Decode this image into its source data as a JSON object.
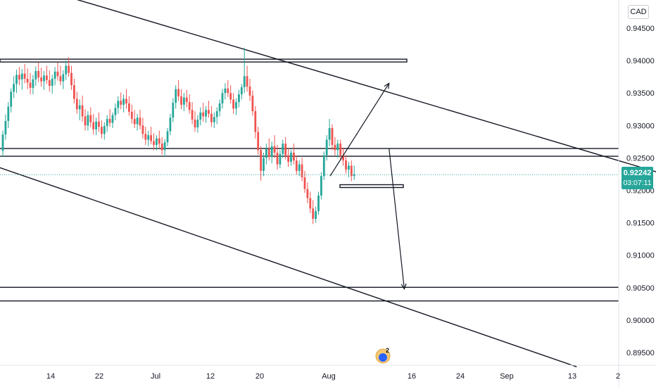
{
  "chart_data": {
    "type": "candlestick",
    "currency": "CAD",
    "ylim": [
      0.8925,
      0.9475
    ],
    "y_ticks": [
      "0.94500",
      "0.94000",
      "0.93500",
      "0.93000",
      "0.92500",
      "0.92000",
      "0.91500",
      "0.91000",
      "0.90500",
      "0.90000",
      "0.89500"
    ],
    "x_ticks": [
      "14",
      "22",
      "Jul",
      "12",
      "20",
      "Aug",
      "16",
      "24",
      "Sep",
      "13",
      "2"
    ],
    "last_price": "0.92242",
    "countdown": "03:07:11",
    "up_color": "#26a69a",
    "down_color": "#ef5350",
    "price_line_color": "#26a69a",
    "marker_count": "2",
    "horizontal_levels": [
      0.94,
      0.92645,
      0.92525,
      0.92065,
      0.90505,
      0.90295
    ],
    "candles_ohlc": [
      [
        0.9261,
        0.9292,
        0.9252,
        0.9286
      ],
      [
        0.9286,
        0.9317,
        0.9278,
        0.9307
      ],
      [
        0.9307,
        0.9336,
        0.9296,
        0.9329
      ],
      [
        0.9329,
        0.9357,
        0.932,
        0.9352
      ],
      [
        0.9352,
        0.9376,
        0.9342,
        0.9364
      ],
      [
        0.9364,
        0.9386,
        0.935,
        0.9378
      ],
      [
        0.9378,
        0.939,
        0.9362,
        0.9371
      ],
      [
        0.9371,
        0.9387,
        0.9355,
        0.938
      ],
      [
        0.938,
        0.9395,
        0.9365,
        0.9372
      ],
      [
        0.9372,
        0.9388,
        0.9356,
        0.9366
      ],
      [
        0.9366,
        0.9381,
        0.9348,
        0.9358
      ],
      [
        0.9358,
        0.9378,
        0.9348,
        0.9371
      ],
      [
        0.9371,
        0.9391,
        0.9361,
        0.9384
      ],
      [
        0.9384,
        0.9397,
        0.9367,
        0.9374
      ],
      [
        0.9374,
        0.9389,
        0.936,
        0.9368
      ],
      [
        0.9368,
        0.9384,
        0.9355,
        0.9377
      ],
      [
        0.9377,
        0.9392,
        0.9364,
        0.937
      ],
      [
        0.937,
        0.9385,
        0.9352,
        0.9361
      ],
      [
        0.9361,
        0.9378,
        0.9349,
        0.9372
      ],
      [
        0.9372,
        0.939,
        0.9362,
        0.9383
      ],
      [
        0.9383,
        0.9397,
        0.9369,
        0.9376
      ],
      [
        0.9376,
        0.9392,
        0.9362,
        0.9368
      ],
      [
        0.9368,
        0.9385,
        0.9356,
        0.9379
      ],
      [
        0.9379,
        0.94,
        0.937,
        0.9392
      ],
      [
        0.9392,
        0.9405,
        0.9375,
        0.9381
      ],
      [
        0.9381,
        0.9392,
        0.9355,
        0.9362
      ],
      [
        0.9362,
        0.9372,
        0.9334,
        0.9341
      ],
      [
        0.9341,
        0.9352,
        0.9318,
        0.9325
      ],
      [
        0.9325,
        0.934,
        0.9308,
        0.9331
      ],
      [
        0.9331,
        0.9346,
        0.9306,
        0.9314
      ],
      [
        0.9314,
        0.9325,
        0.9292,
        0.93
      ],
      [
        0.93,
        0.9322,
        0.9292,
        0.9316
      ],
      [
        0.9316,
        0.9328,
        0.9297,
        0.9305
      ],
      [
        0.9305,
        0.9318,
        0.9286,
        0.9294
      ],
      [
        0.9294,
        0.9312,
        0.9285,
        0.9306
      ],
      [
        0.9306,
        0.932,
        0.929,
        0.9298
      ],
      [
        0.9298,
        0.9308,
        0.928,
        0.9287
      ],
      [
        0.9287,
        0.9305,
        0.9278,
        0.9299
      ],
      [
        0.9299,
        0.9316,
        0.929,
        0.931
      ],
      [
        0.931,
        0.9325,
        0.9298,
        0.9304
      ],
      [
        0.9304,
        0.932,
        0.9296,
        0.9316
      ],
      [
        0.9316,
        0.9334,
        0.9308,
        0.9327
      ],
      [
        0.9327,
        0.9345,
        0.9318,
        0.9338
      ],
      [
        0.9338,
        0.9351,
        0.9325,
        0.9332
      ],
      [
        0.9332,
        0.9348,
        0.932,
        0.9341
      ],
      [
        0.9341,
        0.9356,
        0.9326,
        0.9334
      ],
      [
        0.9334,
        0.9345,
        0.9315,
        0.9321
      ],
      [
        0.9321,
        0.9332,
        0.9303,
        0.931
      ],
      [
        0.931,
        0.9324,
        0.9296,
        0.9302
      ],
      [
        0.9302,
        0.9318,
        0.9292,
        0.9312
      ],
      [
        0.9312,
        0.9324,
        0.9294,
        0.93
      ],
      [
        0.93,
        0.9312,
        0.928,
        0.9287
      ],
      [
        0.9287,
        0.9298,
        0.927,
        0.9278
      ],
      [
        0.9278,
        0.9292,
        0.9268,
        0.9285
      ],
      [
        0.9285,
        0.9298,
        0.9271,
        0.9276
      ],
      [
        0.9276,
        0.9288,
        0.9262,
        0.927
      ],
      [
        0.927,
        0.9285,
        0.9262,
        0.928
      ],
      [
        0.928,
        0.9292,
        0.9266,
        0.9272
      ],
      [
        0.9272,
        0.9282,
        0.9255,
        0.9262
      ],
      [
        0.9262,
        0.9279,
        0.9252,
        0.9274
      ],
      [
        0.9274,
        0.9296,
        0.9268,
        0.9291
      ],
      [
        0.9291,
        0.9318,
        0.9285,
        0.9312
      ],
      [
        0.9312,
        0.9342,
        0.9305,
        0.9335
      ],
      [
        0.9335,
        0.9362,
        0.9326,
        0.9356
      ],
      [
        0.9356,
        0.937,
        0.9338,
        0.9345
      ],
      [
        0.9345,
        0.9356,
        0.9325,
        0.9332
      ],
      [
        0.9332,
        0.935,
        0.9322,
        0.9343
      ],
      [
        0.9343,
        0.9355,
        0.9328,
        0.9336
      ],
      [
        0.9336,
        0.9348,
        0.9318,
        0.9324
      ],
      [
        0.9324,
        0.9336,
        0.9302,
        0.9309
      ],
      [
        0.9309,
        0.9322,
        0.929,
        0.9297
      ],
      [
        0.9297,
        0.9316,
        0.9289,
        0.9309
      ],
      [
        0.9309,
        0.9328,
        0.93,
        0.932
      ],
      [
        0.932,
        0.9335,
        0.9306,
        0.9314
      ],
      [
        0.9314,
        0.933,
        0.9304,
        0.9324
      ],
      [
        0.9324,
        0.9338,
        0.9312,
        0.9318
      ],
      [
        0.9318,
        0.933,
        0.9298,
        0.9305
      ],
      [
        0.9305,
        0.932,
        0.9296,
        0.9313
      ],
      [
        0.9313,
        0.9328,
        0.9302,
        0.9322
      ],
      [
        0.9322,
        0.934,
        0.9314,
        0.9334
      ],
      [
        0.9334,
        0.9356,
        0.9326,
        0.935
      ],
      [
        0.935,
        0.9365,
        0.934,
        0.9357
      ],
      [
        0.9357,
        0.937,
        0.9344,
        0.935
      ],
      [
        0.935,
        0.9362,
        0.9334,
        0.934
      ],
      [
        0.934,
        0.935,
        0.9318,
        0.9326
      ],
      [
        0.9326,
        0.9342,
        0.9316,
        0.9336
      ],
      [
        0.9336,
        0.9355,
        0.9328,
        0.9348
      ],
      [
        0.9348,
        0.9364,
        0.934,
        0.9359
      ],
      [
        0.9359,
        0.942,
        0.935,
        0.9376
      ],
      [
        0.9376,
        0.9392,
        0.9352,
        0.936
      ],
      [
        0.936,
        0.9372,
        0.9338,
        0.9346
      ],
      [
        0.9346,
        0.9354,
        0.9315,
        0.9322
      ],
      [
        0.9322,
        0.933,
        0.928,
        0.929
      ],
      [
        0.929,
        0.9298,
        0.9255,
        0.9262
      ],
      [
        0.9262,
        0.9268,
        0.9215,
        0.923
      ],
      [
        0.923,
        0.9258,
        0.9222,
        0.925
      ],
      [
        0.925,
        0.9272,
        0.924,
        0.9264
      ],
      [
        0.9264,
        0.928,
        0.9246,
        0.9252
      ],
      [
        0.9252,
        0.9275,
        0.9242,
        0.9268
      ],
      [
        0.9268,
        0.9285,
        0.925,
        0.9258
      ],
      [
        0.9258,
        0.927,
        0.9232,
        0.924
      ],
      [
        0.924,
        0.9262,
        0.9234,
        0.9256
      ],
      [
        0.9256,
        0.9278,
        0.925,
        0.9272
      ],
      [
        0.9272,
        0.9282,
        0.9248,
        0.9254
      ],
      [
        0.9254,
        0.9265,
        0.9236,
        0.9244
      ],
      [
        0.9244,
        0.9262,
        0.9238,
        0.9258
      ],
      [
        0.9258,
        0.9272,
        0.924,
        0.9246
      ],
      [
        0.9246,
        0.9254,
        0.9224,
        0.923
      ],
      [
        0.923,
        0.9246,
        0.9222,
        0.924
      ],
      [
        0.924,
        0.925,
        0.9214,
        0.922
      ],
      [
        0.922,
        0.923,
        0.9196,
        0.9202
      ],
      [
        0.9202,
        0.9212,
        0.918,
        0.9188
      ],
      [
        0.9188,
        0.9198,
        0.9165,
        0.9172
      ],
      [
        0.9172,
        0.9185,
        0.9148,
        0.9156
      ],
      [
        0.9156,
        0.9175,
        0.915,
        0.9168
      ],
      [
        0.9168,
        0.9198,
        0.9162,
        0.9192
      ],
      [
        0.9192,
        0.9228,
        0.9186,
        0.9222
      ],
      [
        0.9222,
        0.926,
        0.9216,
        0.9254
      ],
      [
        0.9254,
        0.9285,
        0.9246,
        0.9278
      ],
      [
        0.9278,
        0.931,
        0.9268,
        0.9296
      ],
      [
        0.9296,
        0.9302,
        0.9262,
        0.927
      ],
      [
        0.927,
        0.9282,
        0.9254,
        0.9262
      ],
      [
        0.9262,
        0.9278,
        0.925,
        0.9272
      ],
      [
        0.9272,
        0.9278,
        0.9246,
        0.9254
      ],
      [
        0.9254,
        0.9266,
        0.9238,
        0.9246
      ],
      [
        0.9246,
        0.9254,
        0.9226,
        0.9232
      ],
      [
        0.9232,
        0.9244,
        0.922,
        0.9238
      ],
      [
        0.9238,
        0.9246,
        0.9214,
        0.9222
      ],
      [
        0.9222,
        0.9238,
        0.9216,
        0.9224
      ]
    ],
    "trend_lines": [
      [
        [
          0.0,
          0.9528
        ],
        [
          38.8,
          0.914
        ]
      ],
      [
        [
          -1.0,
          0.9245
        ],
        [
          26.3,
          0.8928
        ]
      ]
    ],
    "rect_zone": [
      13.9,
      14.6,
      0.92065
    ],
    "arrow_paths": [
      [
        [
          15.0,
          0.9222
        ],
        [
          17.7,
          0.9365
        ]
      ],
      [
        [
          17.7,
          0.9265
        ],
        [
          18.4,
          0.9048
        ]
      ]
    ]
  }
}
